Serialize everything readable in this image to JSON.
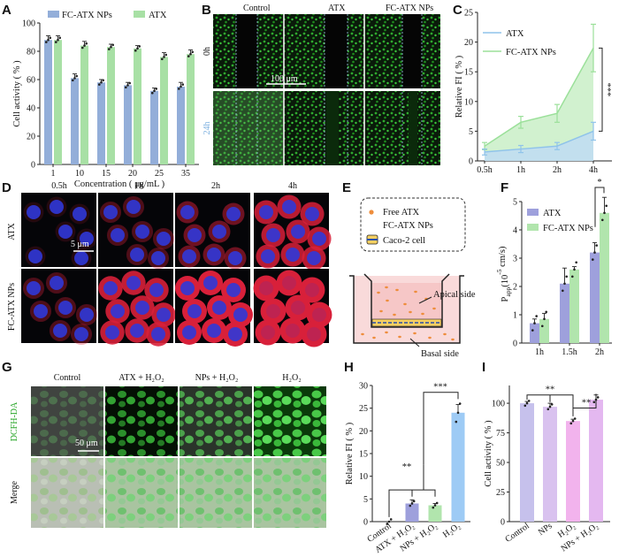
{
  "panels": {
    "A": "A",
    "B": "B",
    "C": "C",
    "D": "D",
    "E": "E",
    "F": "F",
    "G": "G",
    "H": "H",
    "I": "I"
  },
  "colors": {
    "blue": "#93aed9",
    "green": "#a8e0a5",
    "lightblue": "#9bc7ef",
    "purple": "#9ea0dc",
    "lightgreen": "#b1e5ad",
    "lavender": "#c6c1ec",
    "pink": "#f2b3ed",
    "skyblue": "#9ecbf5",
    "micro_green": "#2ea82e",
    "nucleus": "#3038d8",
    "cell_red": "#d8203a"
  },
  "chart_data": [
    {
      "panel": "A",
      "type": "bar",
      "categories": [
        "1",
        "10",
        "15",
        "20",
        "25",
        "35"
      ],
      "series": [
        {
          "name": "FC-ATX NPs",
          "values": [
            88,
            61,
            58,
            56,
            52,
            55
          ],
          "errors": [
            3,
            3,
            2,
            2,
            2,
            3
          ]
        },
        {
          "name": "ATX",
          "values": [
            88,
            84,
            83,
            82,
            76,
            78
          ],
          "errors": [
            3,
            3,
            2,
            2,
            3,
            3
          ]
        }
      ],
      "xlabel": "Concentration ( μg/mL )",
      "ylabel": "Cell activity ( % )",
      "ylim": [
        0,
        100
      ],
      "yticks": [
        "0",
        "20",
        "40",
        "60",
        "80",
        "100"
      ]
    },
    {
      "panel": "C",
      "type": "area",
      "categories": [
        "0.5h",
        "1h",
        "2h",
        "4h"
      ],
      "series": [
        {
          "name": "ATX",
          "values": [
            1.5,
            2,
            2.5,
            5
          ],
          "errors": [
            0.5,
            0.6,
            0.6,
            1.5
          ]
        },
        {
          "name": "FC-ATX NPs",
          "values": [
            2.5,
            6.5,
            8,
            19
          ],
          "errors": [
            0.6,
            1,
            1.5,
            4
          ]
        }
      ],
      "ylabel": "Relative FI ( % )",
      "ylim": [
        0,
        25
      ],
      "yticks": [
        "0",
        "5",
        "10",
        "15",
        "20",
        "25"
      ],
      "annotation": "***"
    },
    {
      "panel": "F",
      "type": "bar",
      "categories": [
        "1h",
        "1.5h",
        "2h"
      ],
      "series": [
        {
          "name": "ATX",
          "values": [
            0.7,
            2.1,
            3.2
          ],
          "errors": [
            0.15,
            0.55,
            0.35
          ]
        },
        {
          "name": "FC-ATX NPs",
          "values": [
            0.85,
            2.6,
            4.6
          ],
          "errors": [
            0.2,
            0.1,
            0.55
          ]
        }
      ],
      "ylabel": "P",
      "ylabel_sub": "app",
      "ylabel_unit": "(10",
      "ylabel_exp": "-5",
      "ylabel_tail": " cm/s)",
      "ylim": [
        0,
        5
      ],
      "yticks": [
        "0",
        "1",
        "2",
        "3",
        "4",
        "5"
      ],
      "annotation": "*"
    },
    {
      "panel": "H",
      "type": "bar",
      "categories": [
        "Control",
        "ATX + H₂O₂",
        "NPs + H₂O₂",
        "H₂O₂"
      ],
      "values": [
        0,
        4,
        3.6,
        24
      ],
      "errors": [
        0,
        0.8,
        0.4,
        1.8
      ],
      "ylabel": "Relative FI ( % )",
      "ylim": [
        0,
        30
      ],
      "yticks": [
        "0",
        "5",
        "10",
        "15",
        "20",
        "25",
        "30"
      ],
      "annotations": [
        "**",
        "***"
      ]
    },
    {
      "panel": "I",
      "type": "bar",
      "categories": [
        "Control",
        "NPs",
        "H₂O₂",
        "NPs + H₂O₂"
      ],
      "values": [
        100,
        97,
        85,
        103
      ],
      "errors": [
        1.5,
        3,
        1.5,
        4
      ],
      "ylabel": "Cell activity ( % )",
      "ylim": [
        0,
        115
      ],
      "yticks": [
        "0",
        "25",
        "50",
        "75",
        "100"
      ],
      "annotations": [
        "**",
        "**"
      ]
    }
  ],
  "panel_b": {
    "columns": [
      "Control",
      "ATX",
      "FC-ATX NPs"
    ],
    "rows": [
      "0h",
      "24h"
    ],
    "scale": "100 μm"
  },
  "panel_d": {
    "columns": [
      "0.5h",
      "1h",
      "2h",
      "4h"
    ],
    "rows": [
      "ATX",
      "FC-ATX NPs"
    ],
    "scale": "5 μm"
  },
  "panel_e": {
    "legend_free": "Free ATX",
    "legend_nps": "FC-ATX NPs",
    "legend_cell": "Caco-2 cell",
    "apical": "Apical side",
    "basal": "Basal side"
  },
  "panel_g": {
    "columns": [
      "Control",
      "ATX + H₂O₂",
      "NPs + H₂O₂",
      "H₂O₂"
    ],
    "rows": [
      "DCFH-DA",
      "Merge"
    ],
    "scale": "50 μm"
  }
}
